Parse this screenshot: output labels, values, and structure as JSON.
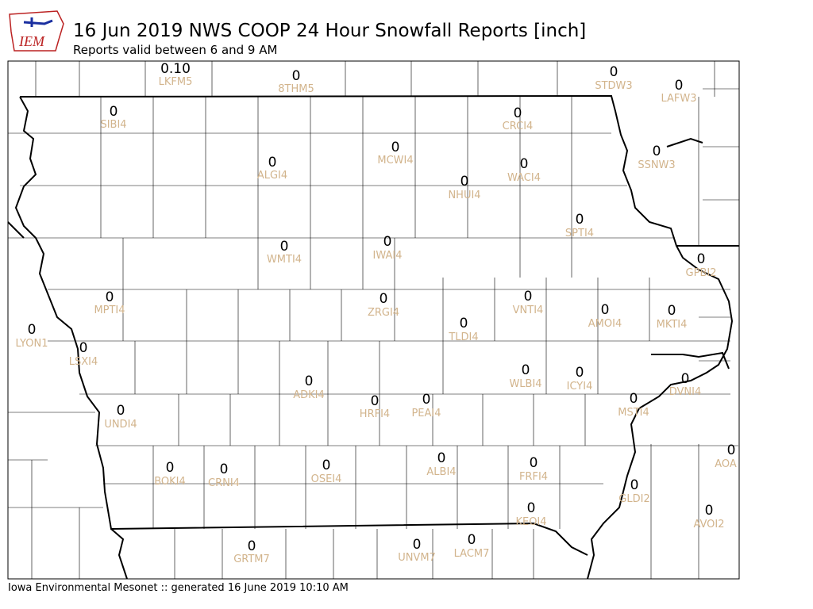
{
  "logo": "IEM",
  "title": "16 Jun 2019 NWS COOP 24 Hour Snowfall Reports [inch]",
  "subtitle": "Reports valid between 6 and 9 AM",
  "footer": "Iowa Environmental Mesonet :: generated 16 June 2019 10:10 AM",
  "stations": [
    {
      "value": "0.10",
      "id": "LKFM5"
    },
    {
      "value": "0",
      "id": "8THM5"
    },
    {
      "value": "0",
      "id": "STDW3"
    },
    {
      "value": "0",
      "id": "LAFW3"
    },
    {
      "value": "0",
      "id": "SIBI4"
    },
    {
      "value": "0",
      "id": "CRCI4"
    },
    {
      "value": "0",
      "id": "MCWI4"
    },
    {
      "value": "0",
      "id": "SSNW3"
    },
    {
      "value": "0",
      "id": "ALGI4"
    },
    {
      "value": "0",
      "id": "WACI4"
    },
    {
      "value": "0",
      "id": "NHUI4"
    },
    {
      "value": "0",
      "id": "SPTI4"
    },
    {
      "value": "0",
      "id": "IWAI4"
    },
    {
      "value": "0",
      "id": "WMTI4"
    },
    {
      "value": "0",
      "id": "GPBI2"
    },
    {
      "value": "0",
      "id": "MPTI4"
    },
    {
      "value": "0",
      "id": "VNTI4"
    },
    {
      "value": "0",
      "id": "ZRGI4"
    },
    {
      "value": "0",
      "id": "AMOI4"
    },
    {
      "value": "0",
      "id": "MKTI4"
    },
    {
      "value": "0",
      "id": "TLDI4"
    },
    {
      "value": "0",
      "id": "LYON1"
    },
    {
      "value": "0",
      "id": "LSXI4"
    },
    {
      "value": "0",
      "id": "WLBI4"
    },
    {
      "value": "0",
      "id": "ICYI4"
    },
    {
      "value": "0",
      "id": "DVNI4"
    },
    {
      "value": "0",
      "id": "ADKI4"
    },
    {
      "value": "0",
      "id": "HRFI4"
    },
    {
      "value": "0",
      "id": "PEAI4"
    },
    {
      "value": "0",
      "id": "MSTI4"
    },
    {
      "value": "0",
      "id": "UNDI4"
    },
    {
      "value": "0",
      "id": "AOA"
    },
    {
      "value": "0",
      "id": "ALBI4"
    },
    {
      "value": "0",
      "id": "FRFI4"
    },
    {
      "value": "0",
      "id": "OSEI4"
    },
    {
      "value": "0",
      "id": "BOKI4"
    },
    {
      "value": "0",
      "id": "CRNI4"
    },
    {
      "value": "0",
      "id": "GLDI2"
    },
    {
      "value": "0",
      "id": "KEOI4"
    },
    {
      "value": "0",
      "id": "AVOI2"
    },
    {
      "value": "0",
      "id": "LACM7"
    },
    {
      "value": "0",
      "id": "UNVM7"
    },
    {
      "value": "0",
      "id": "GRTM7"
    }
  ]
}
